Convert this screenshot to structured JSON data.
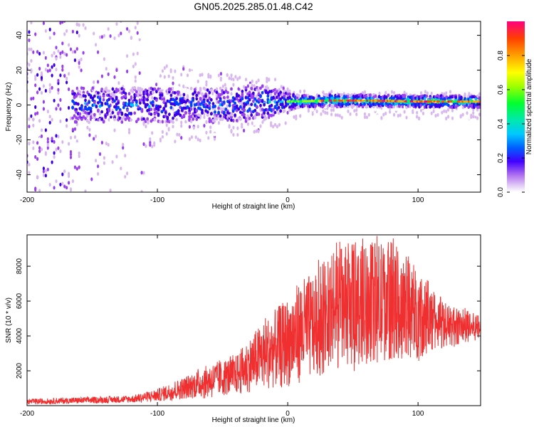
{
  "title": "GN05.2025.285.01.48.C42",
  "chart_data": [
    {
      "type": "heatmap",
      "xlabel": "Height of straight line (km)",
      "ylabel": "Frequency (Hz)",
      "xlim": [
        -200,
        148
      ],
      "ylim": [
        -50,
        48
      ],
      "xticks": [
        -200,
        -100,
        0,
        100
      ],
      "yticks": [
        -40,
        -20,
        0,
        20,
        40
      ],
      "grid": false,
      "colorbar": {
        "label": "Normalized spectral amplitude",
        "range": [
          0,
          1
        ],
        "ticks": [
          0.0,
          0.2,
          0.4,
          0.6,
          0.8
        ],
        "colormap": [
          "#ffffff",
          "#d9b8f0",
          "#9a40f0",
          "#3c00e8",
          "#0040ff",
          "#00c0ff",
          "#00e8a0",
          "#00ff40",
          "#a0ff00",
          "#ffff00",
          "#ffb000",
          "#ff5000",
          "#ff0070"
        ]
      },
      "carrier_track": {
        "description": "narrow-band signal near 0-2 Hz, strongest from 0 to 148 km",
        "points": [
          [
            -160,
            0
          ],
          [
            -100,
            0
          ],
          [
            -50,
            0
          ],
          [
            -20,
            1
          ],
          [
            0,
            2
          ],
          [
            30,
            2.5
          ],
          [
            60,
            2.5
          ],
          [
            100,
            2
          ],
          [
            148,
            2
          ]
        ]
      }
    },
    {
      "type": "line",
      "xlabel": "Height of straight line (km)",
      "ylabel": "SNR (10 * v/v)",
      "xlim": [
        -200,
        148
      ],
      "ylim": [
        0,
        9800
      ],
      "xticks": [
        -200,
        -100,
        0,
        100
      ],
      "yticks": [
        2000,
        4000,
        6000,
        8000
      ],
      "series_color": "#f03030",
      "envelope": {
        "x": [
          -200,
          -160,
          -120,
          -100,
          -80,
          -60,
          -40,
          -20,
          0,
          10,
          20,
          30,
          40,
          60,
          80,
          100,
          120,
          140,
          148
        ],
        "upper": [
          400,
          500,
          600,
          1000,
          1700,
          2500,
          3000,
          5000,
          6500,
          7600,
          8000,
          9000,
          9500,
          9800,
          9800,
          8000,
          6000,
          5500,
          5200
        ],
        "lower": [
          50,
          100,
          150,
          200,
          300,
          400,
          500,
          700,
          800,
          1000,
          1200,
          1500,
          1800,
          2000,
          2200,
          2400,
          3200,
          3500,
          3800
        ]
      }
    }
  ]
}
